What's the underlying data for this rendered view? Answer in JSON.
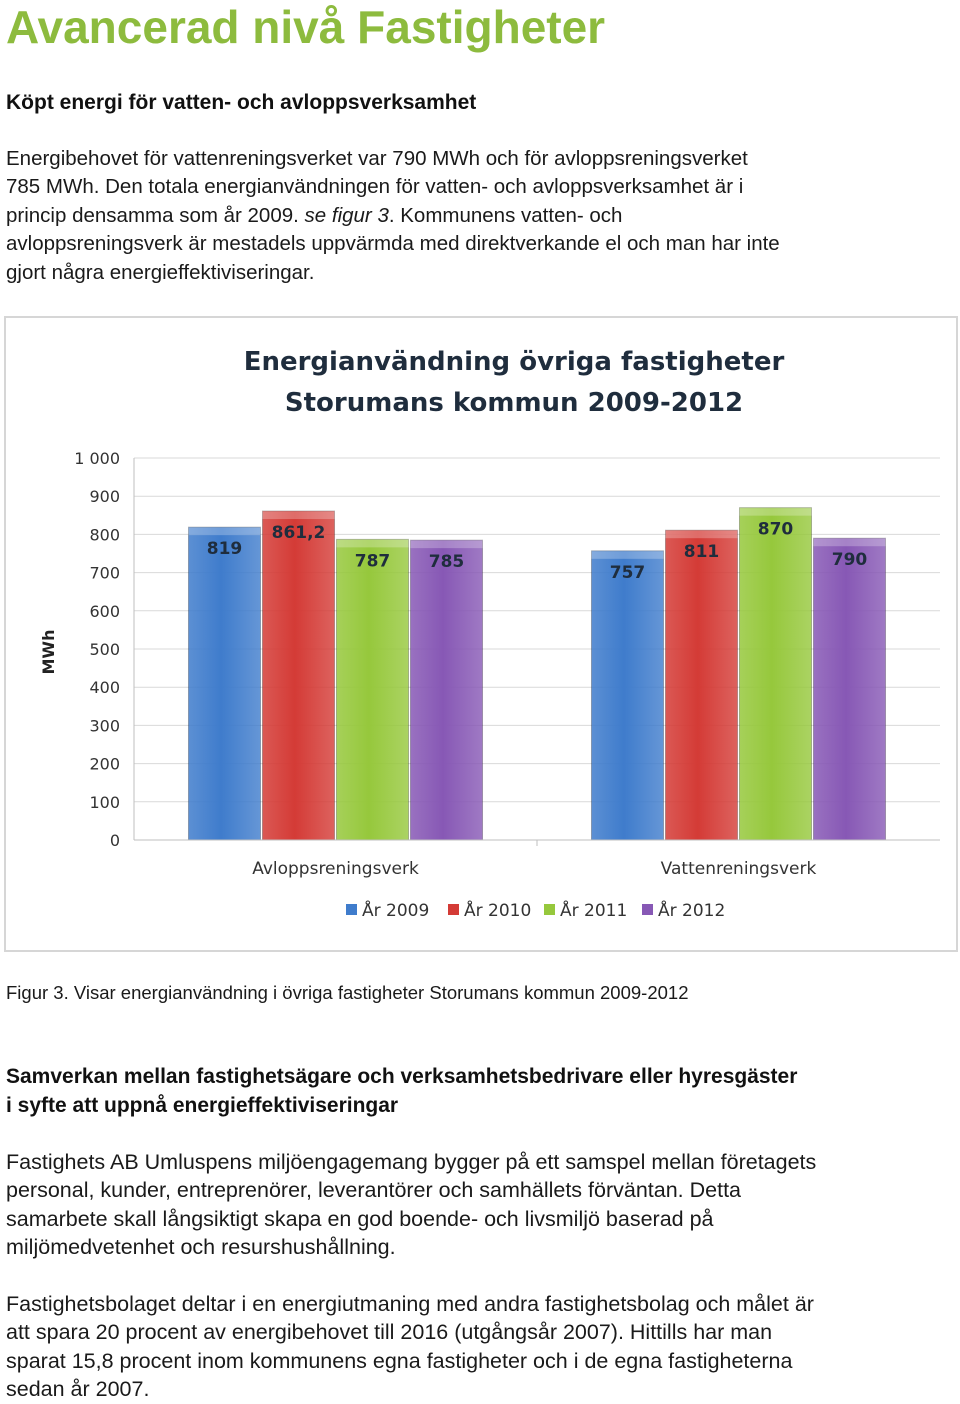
{
  "document": {
    "title": "Avancerad nivå Fastigheter",
    "section1": {
      "heading": "Köpt energi för vatten- och avloppsverksamhet",
      "paragraph_lines": [
        "Energibehovet för vattenreningsverket var 790 MWh och för avloppsreningsverket",
        "785 MWh. Den totala energianvändningen för vatten- och avloppsverksamhet är i",
        "princip densamma som år 2009. ",
        "se figur 3",
        ". Kommunens vatten- och",
        "avloppsreningsverk är mestadels uppvärmda med direktverkande el och man har inte",
        "gjort några energieffektiviseringar."
      ]
    },
    "figure_caption": "Figur 3. Visar energianvändning i övriga fastigheter Storumans kommun 2009-2012",
    "section2": {
      "heading_lines": [
        "Samverkan mellan fastighetsägare och verksamhetsbedrivare eller hyresgäster",
        "i syfte att uppnå energieffektiviseringar"
      ],
      "paragraph1_lines": [
        "Fastighets AB Umluspens miljöengagemang bygger på ett samspel mellan företagets",
        "personal, kunder, entreprenörer, leverantörer och samhällets förväntan. Detta",
        "samarbete skall långsiktigt skapa en god boende- och livsmiljö baserad på",
        "miljömedvetenhet och resurshushållning."
      ],
      "paragraph2_lines": [
        "Fastighetsbolaget deltar i en energiutmaning med andra fastighetsbolag och målet är",
        "att spara 20 procent av energibehovet till 2016 (utgångsår 2007). Hittills har man",
        "sparat 15,8 procent inom kommunens egna fastigheter och i de egna fastigheterna",
        "sedan år 2007."
      ]
    }
  },
  "chart_data": {
    "type": "bar",
    "title_lines": [
      "Energianvändning övriga fastigheter",
      "Storumans kommun 2009-2012"
    ],
    "ylabel": "MWh",
    "xlabel": "",
    "ylim": [
      0,
      1000
    ],
    "yticks": [
      0,
      100,
      200,
      300,
      400,
      500,
      600,
      700,
      800,
      900,
      1000
    ],
    "ytick_labels": [
      "0",
      "100",
      "200",
      "300",
      "400",
      "500",
      "600",
      "700",
      "800",
      "900",
      "1 000"
    ],
    "categories": [
      "Avloppsreningsverk",
      "Vattenreningsverk"
    ],
    "series": [
      {
        "name": "År 2009",
        "values": [
          819,
          757
        ],
        "labels": [
          "819",
          "757"
        ],
        "color": "#3f7ccc"
      },
      {
        "name": "År 2010",
        "values": [
          861.2,
          811
        ],
        "labels": [
          "861,2",
          "811"
        ],
        "color": "#d43b36"
      },
      {
        "name": "År 2011",
        "values": [
          787,
          870
        ],
        "labels": [
          "787",
          "870"
        ],
        "color": "#96c83c"
      },
      {
        "name": "År 2012",
        "values": [
          785,
          790
        ],
        "labels": [
          "785",
          "790"
        ],
        "color": "#8758b5"
      }
    ],
    "grid": true,
    "legend_position": "bottom"
  }
}
